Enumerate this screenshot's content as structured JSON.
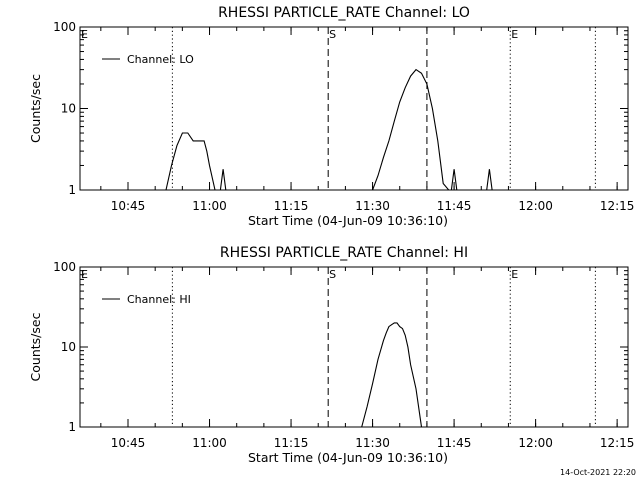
{
  "chart_data": [
    {
      "type": "line",
      "title": "RHESSI PARTICLE_RATE Channel: LO",
      "xlabel": "Start Time (04-Jun-09 10:36:10)",
      "ylabel": "Counts/sec",
      "y_scale": "log",
      "ylim": [
        1,
        100
      ],
      "xlim": [
        "10:36:10",
        "12:17:00"
      ],
      "x_ticks": [
        "10:45",
        "11:00",
        "11:15",
        "11:30",
        "11:45",
        "12:00",
        "12:15"
      ],
      "y_ticks": [
        "1",
        "10",
        "100"
      ],
      "legend": {
        "placement": "top-left",
        "entries": [
          "Channel: LO"
        ]
      },
      "series": [
        {
          "name": "Channel: LO",
          "x": [
            "10:51:30",
            "10:52:00",
            "10:53:00",
            "10:54:00",
            "10:55:00",
            "10:55:30",
            "10:56:00",
            "10:57:00",
            "10:58:00",
            "10:59:00",
            "10:59:30",
            "11:00:00",
            "11:01:00",
            "11:02:00",
            "11:02:30",
            "11:03:00",
            "11:03:30",
            "11:04:00",
            "11:04:30",
            "11:05:00",
            "11:05:30",
            "11:06:00",
            "11:06:30",
            "11:07:00",
            "11:07:30",
            "11:08:00",
            "11:08:30",
            "11:09:00",
            "11:09:30",
            "11:10:00",
            "11:10:30",
            "11:11:00",
            "11:12:00",
            "11:13:00",
            "11:14:00",
            "11:15:00",
            "11:16:00",
            "11:17:00",
            "11:18:00",
            "11:19:00",
            "11:20:00",
            "11:21:00",
            "11:22:00",
            "11:23:00",
            "11:24:00",
            "11:25:00",
            "11:26:00",
            "11:27:00",
            "11:28:00",
            "11:29:00",
            "11:30:00",
            "11:31:00",
            "11:32:00",
            "11:33:00",
            "11:34:00",
            "11:35:00",
            "11:36:00",
            "11:37:00",
            "11:38:00",
            "11:39:00",
            "11:40:00",
            "11:41:00",
            "11:42:00",
            "11:43:00",
            "11:44:00",
            "11:44:30",
            "11:45:00",
            "11:45:30",
            "11:46:00",
            "11:47:00",
            "11:48:00",
            "11:49:00",
            "11:50:00",
            "11:51:00",
            "11:51:30",
            "11:52:00",
            "11:52:30",
            "11:53:00",
            "11:54:00"
          ],
          "y": [
            1,
            1,
            2,
            3.5,
            5,
            5,
            5,
            4,
            4,
            4,
            3,
            2,
            1,
            1,
            1.8,
            1,
            1,
            1,
            1,
            1,
            1,
            1,
            1,
            1,
            1,
            1,
            1,
            1,
            1,
            1,
            1,
            1,
            1,
            1,
            1,
            1,
            1,
            1,
            1,
            1,
            1,
            1,
            1,
            1,
            1,
            1,
            1,
            1,
            1,
            1,
            1,
            1.5,
            2.5,
            4,
            7,
            12,
            18,
            25,
            30,
            27,
            20,
            10,
            4,
            1.2,
            1,
            1,
            1.8,
            1,
            1,
            1,
            1,
            1,
            1,
            1,
            1.8,
            1,
            1,
            1,
            1
          ]
        }
      ],
      "markers": [
        {
          "label": "",
          "time": "10:53:10",
          "style": "dotted"
        },
        {
          "label": "S",
          "time": "11:21:50",
          "style": "dashed"
        },
        {
          "label": "",
          "time": "11:40:00",
          "style": "dashed"
        },
        {
          "label": "E",
          "time": "11:55:20",
          "style": "dotted"
        },
        {
          "label": "",
          "time": "12:11:00",
          "style": "dotted"
        }
      ],
      "corner_label": "E"
    },
    {
      "type": "line",
      "title": "RHESSI PARTICLE_RATE Channel: HI",
      "xlabel": "Start Time (04-Jun-09 10:36:10)",
      "ylabel": "Counts/sec",
      "y_scale": "log",
      "ylim": [
        1,
        100
      ],
      "xlim": [
        "10:36:10",
        "12:17:00"
      ],
      "x_ticks": [
        "10:45",
        "11:00",
        "11:15",
        "11:30",
        "11:45",
        "12:00",
        "12:15"
      ],
      "y_ticks": [
        "1",
        "10",
        "100"
      ],
      "legend": {
        "placement": "top-left",
        "entries": [
          "Channel: HI"
        ]
      },
      "series": [
        {
          "name": "Channel: HI",
          "x": [
            "11:28:00",
            "11:29:00",
            "11:30:00",
            "11:31:00",
            "11:32:00",
            "11:32:30",
            "11:33:00",
            "11:33:30",
            "11:34:00",
            "11:34:30",
            "11:35:00",
            "11:35:30",
            "11:36:00",
            "11:36:30",
            "11:37:00",
            "11:38:00",
            "11:39:00"
          ],
          "y": [
            1,
            1.8,
            3.5,
            7,
            12,
            15,
            18,
            19,
            20,
            20,
            18,
            17,
            14,
            10,
            6,
            3,
            1
          ]
        }
      ],
      "markers": [
        {
          "label": "",
          "time": "10:53:10",
          "style": "dotted"
        },
        {
          "label": "S",
          "time": "11:21:50",
          "style": "dashed"
        },
        {
          "label": "",
          "time": "11:40:00",
          "style": "dashed"
        },
        {
          "label": "E",
          "time": "11:55:20",
          "style": "dotted"
        },
        {
          "label": "",
          "time": "12:11:00",
          "style": "dotted"
        }
      ],
      "corner_label": "E"
    }
  ],
  "footer": {
    "timestamp": "14-Oct-2021 22:20"
  }
}
